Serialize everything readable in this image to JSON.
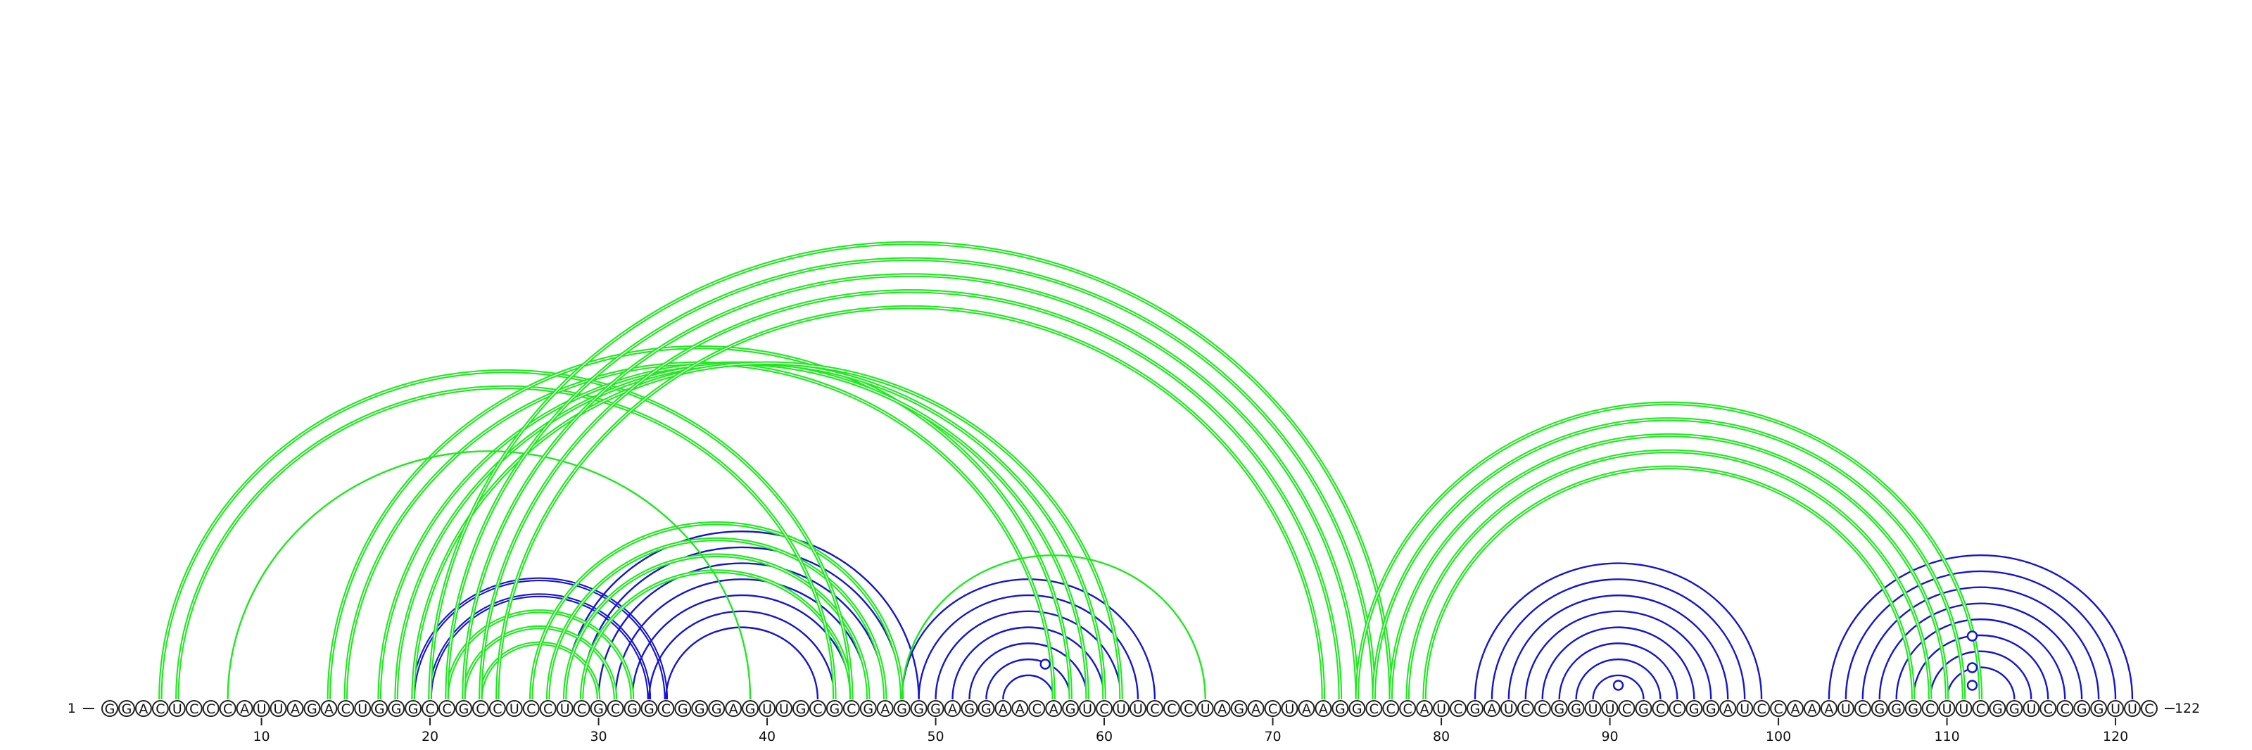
{
  "diagram": {
    "sequence": "GGACUCCCAUUAGACUGGGCCGCCUCCUCGCGGCGGGAGUUGCGCGAGGGAGGAACAGUCUUCCCUAGACUAAGGCCCAUCGAUCCGGUUCGCCGGAUCCAAAUCGGGCUUCGGUCCGGUUC",
    "start_label": "1",
    "end_label": "122",
    "ticks": [
      10,
      20,
      30,
      40,
      50,
      60,
      70,
      80,
      90,
      100,
      110,
      120
    ],
    "colors": {
      "green": "#1fe81f",
      "blue": "#1414d2"
    },
    "arc_sets": [
      {
        "color": "blue",
        "double": false,
        "pairs": [
          [
            82,
            99
          ],
          [
            83,
            98
          ],
          [
            84,
            97
          ],
          [
            85,
            96
          ],
          [
            86,
            95
          ],
          [
            87,
            94
          ],
          [
            88,
            93
          ],
          [
            89,
            92
          ]
        ]
      },
      {
        "color": "blue",
        "double": false,
        "pairs": [
          [
            103,
            121
          ],
          [
            104,
            120
          ],
          [
            105,
            119
          ],
          [
            106,
            118
          ],
          [
            107,
            117
          ],
          [
            108,
            116
          ],
          [
            109,
            115
          ],
          [
            110,
            114
          ]
        ]
      },
      {
        "color": "blue",
        "double": true,
        "pairs": [
          [
            19,
            34
          ],
          [
            20,
            33
          ]
        ]
      },
      {
        "color": "blue",
        "double": false,
        "pairs": [
          [
            28,
            49
          ],
          [
            29,
            48
          ],
          [
            30,
            47
          ],
          [
            31,
            46
          ],
          [
            32,
            45
          ],
          [
            33,
            44
          ],
          [
            34,
            43
          ]
        ]
      },
      {
        "color": "blue",
        "double": false,
        "pairs": [
          [
            48,
            63
          ],
          [
            49,
            62
          ],
          [
            50,
            61
          ],
          [
            51,
            60
          ],
          [
            52,
            59
          ],
          [
            53,
            58
          ],
          [
            54,
            57
          ]
        ]
      },
      {
        "color": "green",
        "double": true,
        "pairs": [
          [
            21,
            32
          ],
          [
            22,
            31
          ],
          [
            23,
            30
          ],
          [
            26,
            48
          ],
          [
            27,
            47
          ],
          [
            28,
            46
          ],
          [
            29,
            45
          ]
        ]
      },
      {
        "color": "green",
        "double": true,
        "pairs": [
          [
            4,
            45
          ],
          [
            5,
            44
          ],
          [
            14,
            58
          ],
          [
            15,
            57
          ],
          [
            17,
            59
          ],
          [
            18,
            60
          ],
          [
            19,
            61
          ]
        ]
      },
      {
        "color": "green",
        "double": false,
        "pairs": [
          [
            8,
            39
          ]
        ]
      },
      {
        "color": "green",
        "double": false,
        "pairs": [
          [
            48,
            66
          ]
        ]
      },
      {
        "color": "green",
        "double": true,
        "pairs": [
          [
            20,
            77
          ],
          [
            21,
            76
          ],
          [
            22,
            75
          ],
          [
            23,
            74
          ],
          [
            24,
            73
          ]
        ]
      },
      {
        "color": "green",
        "double": true,
        "pairs": [
          [
            75,
            112
          ],
          [
            76,
            111
          ],
          [
            77,
            110
          ],
          [
            78,
            109
          ],
          [
            79,
            108
          ]
        ]
      }
    ],
    "markers": [
      {
        "color": "blue",
        "pos": 56.5,
        "level": 0.1
      },
      {
        "color": "blue",
        "pos": 90.5,
        "level": 0.04
      },
      {
        "color": "blue",
        "pos": 111.5,
        "level": 0.04
      },
      {
        "color": "blue",
        "pos": 111.5,
        "level": 0.09
      },
      {
        "color": "blue",
        "pos": 111.5,
        "level": 0.18
      }
    ]
  }
}
